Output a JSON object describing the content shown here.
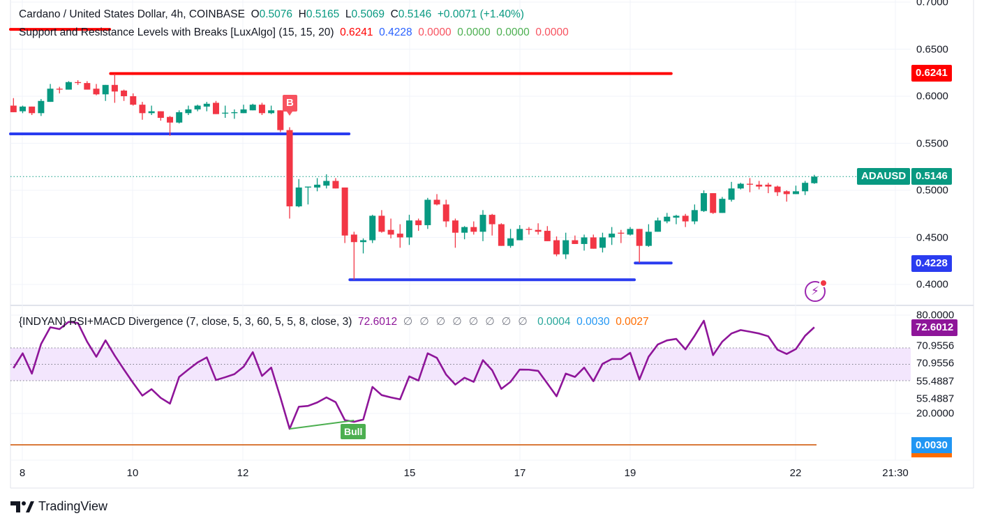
{
  "header": {
    "symbol": "Cardano / United States Dollar, 4h, COINBASE",
    "o_label": "O",
    "o": "0.5076",
    "h_label": "H",
    "h": "0.5165",
    "l_label": "L",
    "l": "0.5069",
    "c_label": "C",
    "c": "0.5146",
    "change": "+0.0071 (+1.40%)"
  },
  "indicator1": {
    "name": "Support and Resistance Levels with Breaks [LuxAlgo] (15, 15, 20)",
    "values": [
      "0.6241",
      "0.4228",
      "0.0000",
      "0.0000",
      "0.0000",
      "0.0000"
    ]
  },
  "indicator2": {
    "name": "{INDYAN} RSI+MACD Divergence (7, close, 5, 3, 60, 5, 5, 8, close, 3)",
    "rsi_value": "72.6012",
    "empty_values": [
      "∅",
      "∅",
      "∅",
      "∅",
      "∅",
      "∅",
      "∅",
      "∅"
    ],
    "macd_values": [
      "0.0004",
      "0.0030",
      "0.0027"
    ]
  },
  "price_axis": [
    "0.7000",
    "0.6500",
    "0.6000",
    "0.5500",
    "0.5000",
    "0.4500",
    "0.4000"
  ],
  "price_badges": {
    "resistance": "0.6241",
    "symbol": "ADAUSD",
    "last": "0.5146",
    "support": "0.4228"
  },
  "rsi_axis": [
    "80.0000",
    "70.9556",
    "70.9556",
    "55.4887",
    "55.4887",
    "20.0000"
  ],
  "rsi_badge": "72.6012",
  "macd_badge": "0.0030",
  "time_axis": [
    "8",
    "10",
    "12",
    "15",
    "17",
    "19",
    "22",
    "21:30"
  ],
  "markers": {
    "break": "B",
    "divergence": "Bull"
  },
  "brand": "TradingView",
  "colors": {
    "up": "#089981",
    "down": "#f23645",
    "resistance": "#ff0000",
    "support": "#2a3cf0",
    "rsi": "#8e1599",
    "rsi_band": "#f3e6fd",
    "macd": "#ff6d00",
    "macd_badge": "#2196f3",
    "bull": "#4caf50"
  },
  "chart_data": {
    "type": "candlestick",
    "timeframe": "4h",
    "ohlc": [
      [
        0.59,
        0.598,
        0.583,
        0.583
      ],
      [
        0.584,
        0.59,
        0.582,
        0.589
      ],
      [
        0.589,
        0.589,
        0.58,
        0.582
      ],
      [
        0.582,
        0.597,
        0.579,
        0.595
      ],
      [
        0.594,
        0.613,
        0.594,
        0.608
      ],
      [
        0.608,
        0.61,
        0.603,
        0.607
      ],
      [
        0.607,
        0.616,
        0.607,
        0.615
      ],
      [
        0.615,
        0.617,
        0.612,
        0.614
      ],
      [
        0.614,
        0.616,
        0.607,
        0.607
      ],
      [
        0.608,
        0.613,
        0.601,
        0.602
      ],
      [
        0.602,
        0.612,
        0.595,
        0.612
      ],
      [
        0.612,
        0.624,
        0.593,
        0.605
      ],
      [
        0.606,
        0.607,
        0.595,
        0.6
      ],
      [
        0.6,
        0.603,
        0.59,
        0.591
      ],
      [
        0.591,
        0.594,
        0.575,
        0.582
      ],
      [
        0.582,
        0.59,
        0.58,
        0.584
      ],
      [
        0.584,
        0.584,
        0.574,
        0.577
      ],
      [
        0.578,
        0.579,
        0.558,
        0.572
      ],
      [
        0.572,
        0.585,
        0.571,
        0.583
      ],
      [
        0.582,
        0.59,
        0.58,
        0.586
      ],
      [
        0.586,
        0.591,
        0.584,
        0.59
      ],
      [
        0.589,
        0.594,
        0.584,
        0.592
      ],
      [
        0.593,
        0.595,
        0.581,
        0.581
      ],
      [
        0.582,
        0.59,
        0.577,
        0.5825
      ],
      [
        0.582,
        0.586,
        0.576,
        0.583
      ],
      [
        0.582,
        0.591,
        0.582,
        0.586
      ],
      [
        0.585,
        0.592,
        0.585,
        0.591
      ],
      [
        0.591,
        0.593,
        0.58,
        0.582
      ],
      [
        0.582,
        0.59,
        0.581,
        0.585
      ],
      [
        0.585,
        0.585,
        0.562,
        0.564
      ],
      [
        0.564,
        0.567,
        0.47,
        0.483
      ],
      [
        0.483,
        0.512,
        0.482,
        0.503
      ],
      [
        0.503,
        0.504,
        0.485,
        0.504
      ],
      [
        0.503,
        0.513,
        0.499,
        0.506
      ],
      [
        0.505,
        0.517,
        0.502,
        0.51
      ],
      [
        0.51,
        0.513,
        0.502,
        0.502
      ],
      [
        0.503,
        0.503,
        0.444,
        0.452
      ],
      [
        0.453,
        0.456,
        0.405,
        0.445
      ],
      [
        0.445,
        0.449,
        0.433,
        0.447
      ],
      [
        0.447,
        0.474,
        0.444,
        0.473
      ],
      [
        0.473,
        0.479,
        0.455,
        0.456
      ],
      [
        0.458,
        0.47,
        0.449,
        0.453
      ],
      [
        0.454,
        0.464,
        0.439,
        0.45
      ],
      [
        0.45,
        0.474,
        0.442,
        0.468
      ],
      [
        0.468,
        0.47,
        0.457,
        0.463
      ],
      [
        0.463,
        0.492,
        0.459,
        0.49
      ],
      [
        0.49,
        0.496,
        0.484,
        0.485
      ],
      [
        0.485,
        0.49,
        0.461,
        0.467
      ],
      [
        0.468,
        0.47,
        0.439,
        0.455
      ],
      [
        0.455,
        0.462,
        0.448,
        0.461
      ],
      [
        0.461,
        0.467,
        0.453,
        0.456
      ],
      [
        0.456,
        0.479,
        0.446,
        0.474
      ],
      [
        0.474,
        0.475,
        0.452,
        0.464
      ],
      [
        0.464,
        0.465,
        0.441,
        0.441
      ],
      [
        0.441,
        0.459,
        0.439,
        0.449
      ],
      [
        0.447,
        0.463,
        0.447,
        0.459
      ],
      [
        0.459,
        0.461,
        0.453,
        0.458
      ],
      [
        0.458,
        0.465,
        0.453,
        0.456
      ],
      [
        0.457,
        0.462,
        0.446,
        0.446
      ],
      [
        0.447,
        0.451,
        0.43,
        0.432
      ],
      [
        0.432,
        0.455,
        0.427,
        0.447
      ],
      [
        0.447,
        0.452,
        0.443,
        0.443
      ],
      [
        0.443,
        0.453,
        0.436,
        0.45
      ],
      [
        0.45,
        0.453,
        0.438,
        0.438
      ],
      [
        0.439,
        0.455,
        0.434,
        0.45
      ],
      [
        0.45,
        0.461,
        0.442,
        0.454
      ],
      [
        0.455,
        0.458,
        0.444,
        0.454
      ],
      [
        0.453,
        0.461,
        0.452,
        0.459
      ],
      [
        0.459,
        0.459,
        0.423,
        0.441
      ],
      [
        0.441,
        0.464,
        0.44,
        0.456
      ],
      [
        0.456,
        0.471,
        0.456,
        0.468
      ],
      [
        0.467,
        0.476,
        0.465,
        0.472
      ],
      [
        0.471,
        0.474,
        0.464,
        0.473
      ],
      [
        0.473,
        0.475,
        0.461,
        0.467
      ],
      [
        0.467,
        0.485,
        0.464,
        0.479
      ],
      [
        0.478,
        0.5,
        0.477,
        0.497
      ],
      [
        0.497,
        0.497,
        0.475,
        0.476
      ],
      [
        0.476,
        0.493,
        0.476,
        0.491
      ],
      [
        0.49,
        0.509,
        0.488,
        0.502
      ],
      [
        0.502,
        0.508,
        0.501,
        0.507
      ],
      [
        0.507,
        0.513,
        0.498,
        0.506
      ],
      [
        0.506,
        0.51,
        0.501,
        0.504
      ],
      [
        0.506,
        0.508,
        0.497,
        0.504
      ],
      [
        0.504,
        0.505,
        0.494,
        0.498
      ],
      [
        0.499,
        0.5,
        0.488,
        0.496
      ],
      [
        0.496,
        0.505,
        0.496,
        0.499
      ],
      [
        0.499,
        0.51,
        0.495,
        0.508
      ],
      [
        0.5076,
        0.5165,
        0.5069,
        0.5146
      ]
    ],
    "levels": [
      {
        "type": "resistance",
        "price": 0.671,
        "from_bar": 0,
        "to_bar": 11
      },
      {
        "type": "resistance",
        "price": 0.6241,
        "from_bar": 12,
        "to_bar": 72
      },
      {
        "type": "support",
        "price": 0.56,
        "from_bar": 0,
        "to_bar": 37
      },
      {
        "type": "support",
        "price": 0.405,
        "from_bar": 38,
        "to_bar": 68
      },
      {
        "type": "support",
        "price": 0.4228,
        "from_bar": 69,
        "to_bar": 72
      }
    ],
    "break_bar": 31,
    "rsi": [
      47.7,
      56.7,
      44.3,
      62.4,
      72.6,
      71.5,
      75.9,
      75.2,
      63.8,
      54.6,
      64.6,
      55.3,
      46.8,
      38.6,
      30.9,
      34.8,
      29.5,
      26.0,
      42.3,
      46.8,
      51.1,
      54.2,
      40.4,
      42.1,
      44.0,
      48.5,
      57.4,
      42.9,
      48.0,
      29.8,
      10.6,
      24.1,
      24.6,
      26.7,
      29.8,
      26.9,
      15.9,
      14.9,
      16.3,
      36.2,
      31.2,
      29.8,
      28.6,
      42.6,
      40.1,
      56.7,
      53.9,
      43.7,
      37.6,
      41.8,
      39.3,
      52.5,
      46.4,
      35.0,
      39.3,
      46.8,
      46.7,
      46.0,
      38.3,
      30.5,
      44.3,
      42.3,
      48.0,
      39.7,
      50.3,
      53.2,
      53.2,
      57.0,
      40.7,
      54.6,
      62.1,
      64.6,
      65.5,
      59.1,
      67.4,
      76.6,
      55.6,
      63.8,
      68.8,
      70.9,
      69.9,
      68.8,
      67.1,
      58.9,
      56.3,
      59.3,
      67.4,
      72.6
    ],
    "rsi_band": [
      40,
      60
    ],
    "bull_divergence": {
      "from_bar": 31,
      "to_bar": 38
    },
    "price_range": [
      0.4,
      0.7
    ]
  }
}
